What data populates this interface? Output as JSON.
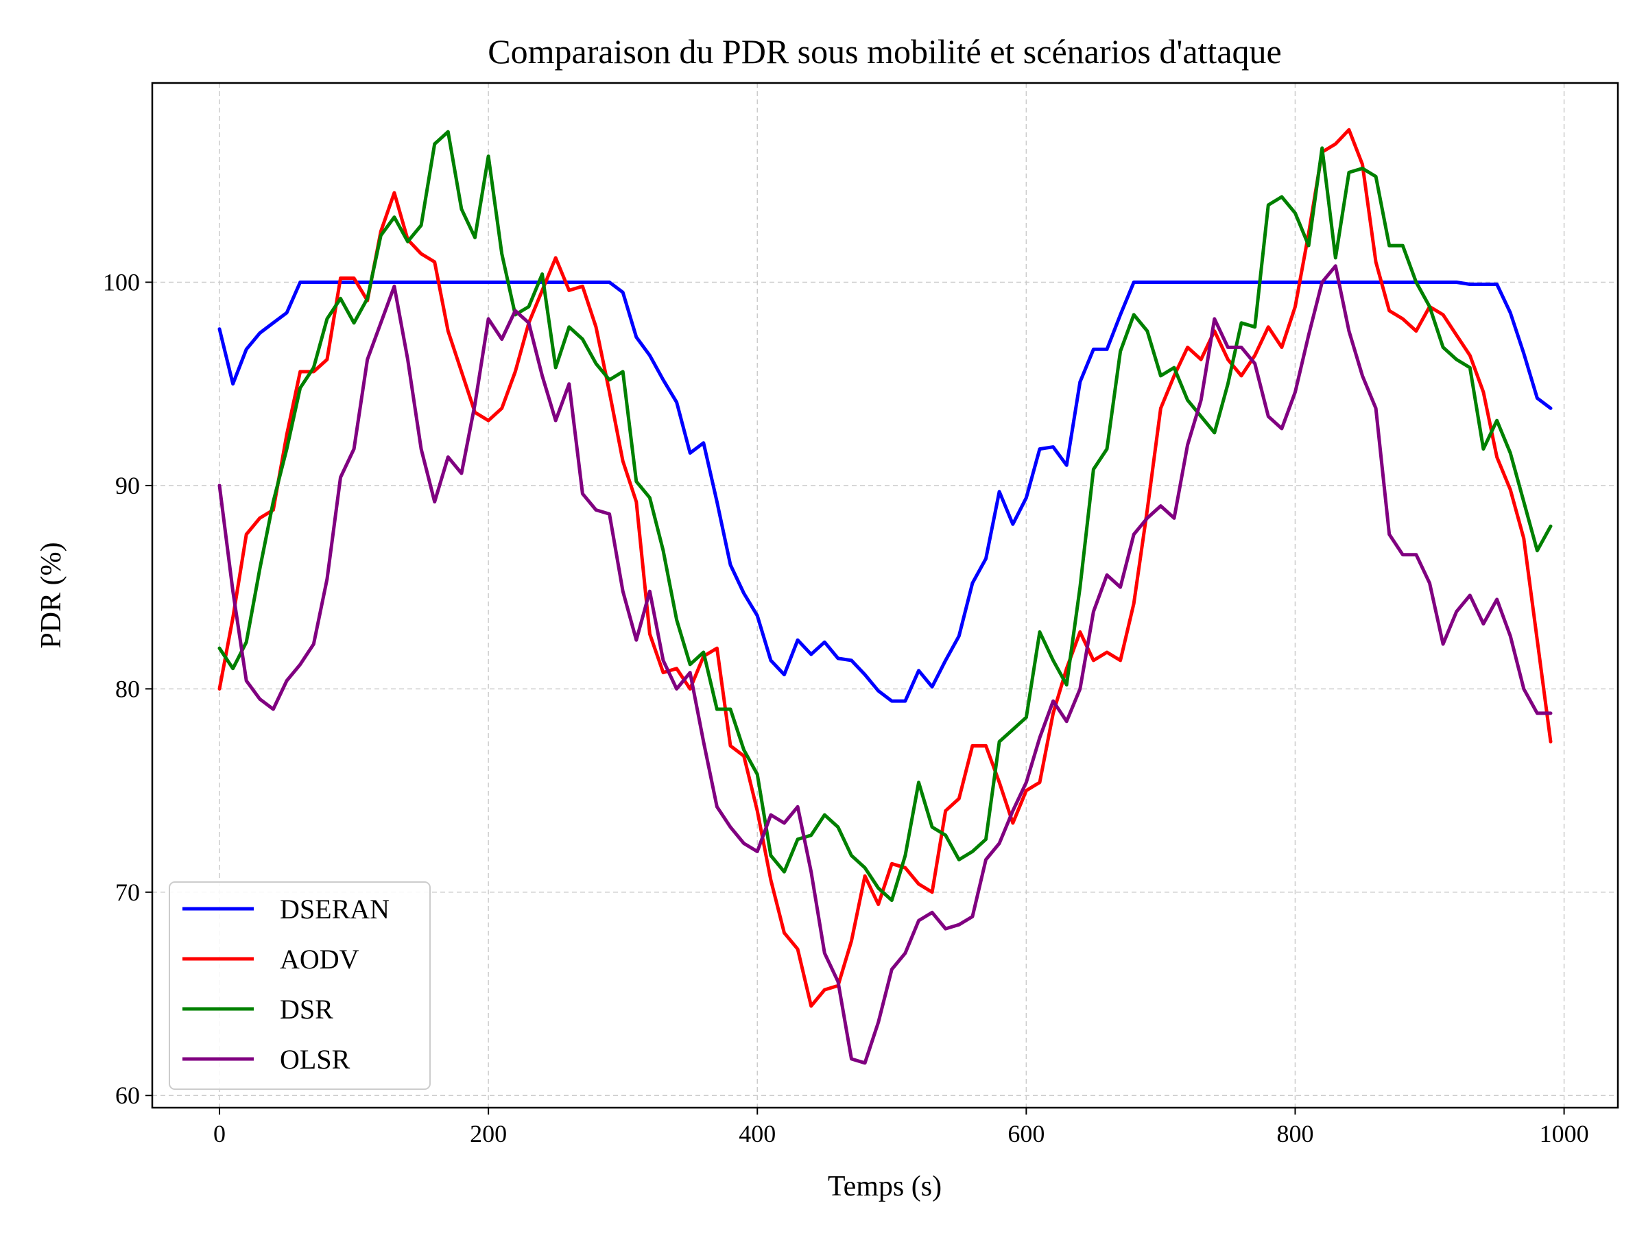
{
  "chart_data": {
    "type": "line",
    "title": "Comparaison du PDR sous mobilité et scénarios d'attaque",
    "xlabel": "Temps (s)",
    "ylabel": "PDR (%)",
    "xlim": [
      -50,
      1040
    ],
    "ylim": [
      59.4,
      109.8
    ],
    "xticks": [
      0,
      200,
      400,
      600,
      800,
      1000
    ],
    "yticks": [
      60,
      70,
      80,
      90,
      100
    ],
    "grid": true,
    "legend_position": "lower-left",
    "x": [
      0,
      10,
      20,
      30,
      40,
      50,
      60,
      70,
      80,
      90,
      100,
      110,
      120,
      130,
      140,
      150,
      160,
      170,
      180,
      190,
      200,
      210,
      220,
      230,
      240,
      250,
      260,
      270,
      280,
      290,
      300,
      310,
      320,
      330,
      340,
      350,
      360,
      370,
      380,
      390,
      400,
      410,
      420,
      430,
      440,
      450,
      460,
      470,
      480,
      490,
      500,
      510,
      520,
      530,
      540,
      550,
      560,
      570,
      580,
      590,
      600,
      610,
      620,
      630,
      640,
      650,
      660,
      670,
      680,
      690,
      700,
      710,
      720,
      730,
      740,
      750,
      760,
      770,
      780,
      790,
      800,
      810,
      820,
      830,
      840,
      850,
      860,
      870,
      880,
      890,
      900,
      910,
      920,
      930,
      940,
      950,
      960,
      970,
      980,
      990
    ],
    "series": [
      {
        "name": "DSERAN",
        "color": "#0000ff",
        "values": [
          97.7,
          95.0,
          96.7,
          97.5,
          98.0,
          98.5,
          100,
          100,
          100,
          100,
          100,
          100,
          100,
          100,
          100,
          100,
          100,
          100,
          100,
          100,
          100,
          100,
          100,
          100,
          100,
          100,
          100,
          100,
          100,
          100,
          99.5,
          97.3,
          96.4,
          95.2,
          94.1,
          91.6,
          92.1,
          89.2,
          86.1,
          84.7,
          83.6,
          81.4,
          80.7,
          82.4,
          81.7,
          82.3,
          81.5,
          81.4,
          80.7,
          79.9,
          79.4,
          79.4,
          80.9,
          80.1,
          81.4,
          82.6,
          85.2,
          86.4,
          89.7,
          88.1,
          89.4,
          91.8,
          91.9,
          91.0,
          95.1,
          96.7,
          96.7,
          98.4,
          100,
          100,
          100,
          100,
          100,
          100,
          100,
          100,
          100,
          100,
          100,
          100,
          100,
          100,
          100,
          100,
          100,
          100,
          100,
          100,
          100,
          100,
          100,
          100,
          100,
          99.9,
          99.9,
          99.9,
          98.5,
          96.5,
          94.3,
          93.8
        ]
      },
      {
        "name": "AODV",
        "color": "#ff0000",
        "values": [
          80.0,
          83.5,
          87.6,
          88.4,
          88.8,
          92.5,
          95.6,
          95.6,
          96.2,
          100.2,
          100.2,
          99.1,
          102.5,
          104.4,
          102.1,
          101.4,
          101.0,
          97.6,
          95.6,
          93.6,
          93.2,
          93.8,
          95.6,
          98.0,
          99.6,
          101.2,
          99.6,
          99.8,
          97.8,
          94.6,
          91.2,
          89.2,
          82.7,
          80.8,
          81.0,
          80.0,
          81.6,
          82.0,
          77.2,
          76.7,
          74.0,
          70.6,
          68.0,
          67.2,
          64.4,
          65.2,
          65.4,
          67.6,
          70.8,
          69.4,
          71.4,
          71.2,
          70.4,
          70.0,
          74.0,
          74.6,
          77.2,
          77.2,
          75.4,
          73.4,
          75.0,
          75.4,
          78.8,
          81.0,
          82.8,
          81.4,
          81.8,
          81.4,
          84.2,
          88.8,
          93.8,
          95.4,
          96.8,
          96.2,
          97.6,
          96.2,
          95.4,
          96.4,
          97.8,
          96.8,
          98.8,
          102.4,
          106.4,
          106.8,
          107.5,
          105.8,
          101.0,
          98.6,
          98.2,
          97.6,
          98.8,
          98.4,
          97.4,
          96.4,
          94.6,
          91.4,
          89.8,
          87.4,
          82.4,
          77.4
        ]
      },
      {
        "name": "DSR",
        "color": "#008000",
        "values": [
          82.0,
          81.0,
          82.3,
          85.9,
          89.2,
          91.8,
          94.8,
          95.8,
          98.2,
          99.2,
          98.0,
          99.2,
          102.3,
          103.2,
          102.0,
          102.8,
          106.8,
          107.4,
          103.6,
          102.2,
          106.2,
          101.4,
          98.4,
          98.8,
          100.4,
          95.8,
          97.8,
          97.2,
          96.0,
          95.2,
          95.6,
          90.2,
          89.4,
          86.8,
          83.4,
          81.2,
          81.8,
          79.0,
          79.0,
          77.0,
          75.8,
          71.8,
          71.0,
          72.6,
          72.8,
          73.8,
          73.2,
          71.8,
          71.2,
          70.2,
          69.6,
          71.8,
          75.4,
          73.2,
          72.8,
          71.6,
          72.0,
          72.6,
          77.4,
          78.0,
          78.6,
          82.8,
          81.4,
          80.2,
          85.0,
          90.8,
          91.8,
          96.6,
          98.4,
          97.6,
          95.4,
          95.8,
          94.2,
          93.4,
          92.6,
          95.0,
          98.0,
          97.8,
          103.8,
          104.2,
          103.4,
          101.8,
          106.6,
          101.2,
          105.4,
          105.6,
          105.2,
          101.8,
          101.8,
          100.0,
          98.8,
          96.8,
          96.2,
          95.8,
          91.8,
          93.2,
          91.6,
          89.2,
          86.8,
          88.0
        ]
      },
      {
        "name": "OLSR",
        "color": "#800080",
        "values": [
          90.0,
          84.8,
          80.4,
          79.5,
          79.0,
          80.4,
          81.2,
          82.2,
          85.4,
          90.4,
          91.8,
          96.2,
          98.0,
          99.8,
          96.2,
          91.8,
          89.2,
          91.4,
          90.6,
          94.0,
          98.2,
          97.2,
          98.6,
          98.0,
          95.4,
          93.2,
          95.0,
          89.6,
          88.8,
          88.6,
          84.8,
          82.4,
          84.8,
          81.4,
          80.0,
          80.8,
          77.4,
          74.2,
          73.2,
          72.4,
          72.0,
          73.8,
          73.4,
          74.2,
          71.0,
          67.0,
          65.6,
          61.8,
          61.6,
          63.6,
          66.2,
          67.0,
          68.6,
          69.0,
          68.2,
          68.4,
          68.8,
          71.6,
          72.4,
          74.0,
          75.4,
          77.6,
          79.4,
          78.4,
          80.0,
          83.8,
          85.6,
          85.0,
          87.6,
          88.4,
          89.0,
          88.4,
          92.0,
          94.2,
          98.2,
          96.8,
          96.8,
          96.0,
          93.4,
          92.8,
          94.6,
          97.4,
          100.0,
          100.8,
          97.6,
          95.4,
          93.8,
          87.6,
          86.6,
          86.6,
          85.2,
          82.2,
          83.8,
          84.6,
          83.2,
          84.4,
          82.6,
          80.0,
          78.8,
          78.8
        ]
      }
    ]
  }
}
